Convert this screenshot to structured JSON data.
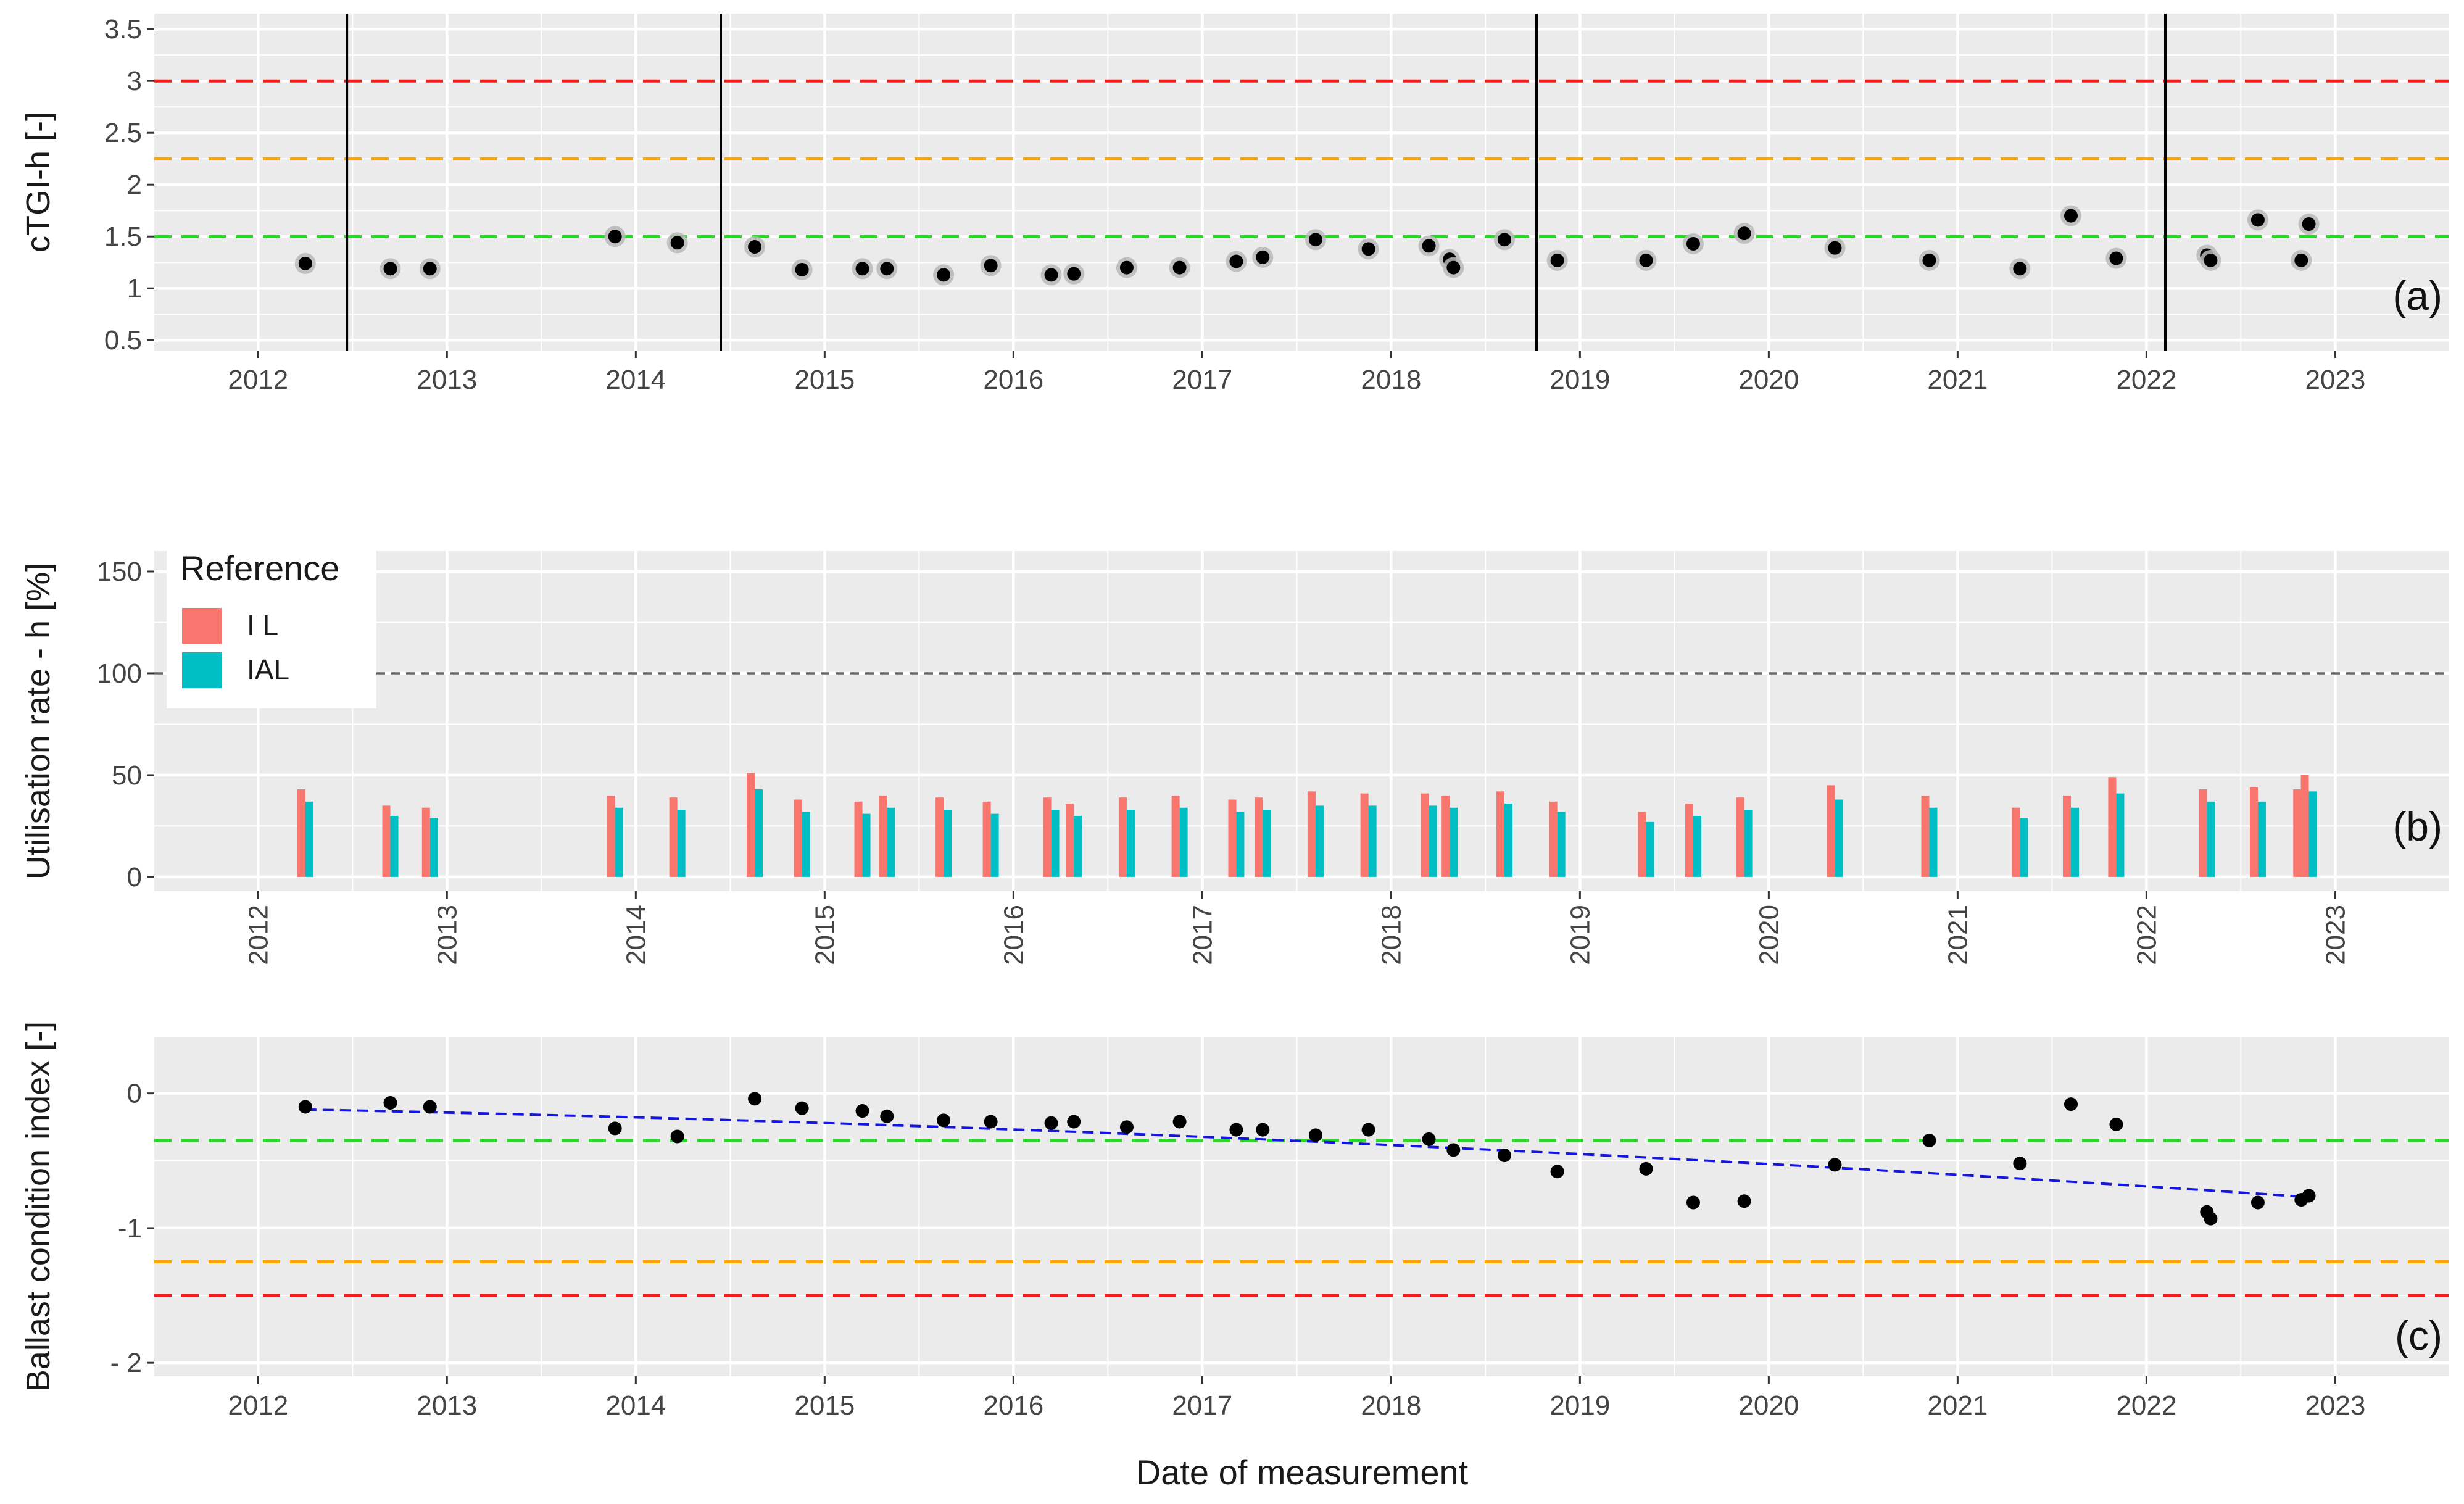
{
  "figure": {
    "xlabel": "Date of measurement"
  },
  "colors": {
    "panel_bg": "#EBEBEB",
    "grid": "#FFFFFF",
    "red": "#FF1A1A",
    "orange": "#FFA500",
    "green": "#22DD22",
    "il": "#F8766D",
    "ial": "#00BFC4",
    "trend": "#1515E0",
    "vline": "#000000",
    "ref100": "#666666"
  },
  "chart_data": [
    {
      "id": "a",
      "type": "scatter",
      "panel_label": "(a)",
      "ylabel": "cTGI-h [-]",
      "ylim": [
        0.4,
        3.65
      ],
      "xlim": [
        2011.45,
        2023.6
      ],
      "yticks": [
        0.5,
        1,
        1.5,
        2,
        2.5,
        3,
        3.5
      ],
      "ytick_labels": [
        "0.5",
        "1",
        "1.5",
        "2",
        "2.5",
        "3",
        "3.5"
      ],
      "xticks": [
        2012,
        2013,
        2014,
        2015,
        2016,
        2017,
        2018,
        2019,
        2020,
        2021,
        2022,
        2023
      ],
      "xtick_labels": [
        "2012",
        "2013",
        "2014",
        "2015",
        "2016",
        "2017",
        "2018",
        "2019",
        "2020",
        "2021",
        "2022",
        "2023"
      ],
      "threshold_lines": [
        {
          "name": "red",
          "y": 3.0
        },
        {
          "name": "orange",
          "y": 2.25
        },
        {
          "name": "green",
          "y": 1.5
        }
      ],
      "vertical_lines": [
        2012.47,
        2014.45,
        2018.77,
        2022.1
      ],
      "points": [
        {
          "x": 2012.25,
          "y": 1.24
        },
        {
          "x": 2012.7,
          "y": 1.19
        },
        {
          "x": 2012.91,
          "y": 1.19
        },
        {
          "x": 2013.89,
          "y": 1.5
        },
        {
          "x": 2014.22,
          "y": 1.44
        },
        {
          "x": 2014.63,
          "y": 1.4
        },
        {
          "x": 2014.88,
          "y": 1.18
        },
        {
          "x": 2015.2,
          "y": 1.19
        },
        {
          "x": 2015.33,
          "y": 1.19
        },
        {
          "x": 2015.63,
          "y": 1.13
        },
        {
          "x": 2015.88,
          "y": 1.22
        },
        {
          "x": 2016.2,
          "y": 1.13
        },
        {
          "x": 2016.32,
          "y": 1.14
        },
        {
          "x": 2016.6,
          "y": 1.2
        },
        {
          "x": 2016.88,
          "y": 1.2
        },
        {
          "x": 2017.18,
          "y": 1.26
        },
        {
          "x": 2017.32,
          "y": 1.3
        },
        {
          "x": 2017.6,
          "y": 1.47
        },
        {
          "x": 2017.88,
          "y": 1.38
        },
        {
          "x": 2018.2,
          "y": 1.41
        },
        {
          "x": 2018.31,
          "y": 1.28
        },
        {
          "x": 2018.33,
          "y": 1.2
        },
        {
          "x": 2018.6,
          "y": 1.47
        },
        {
          "x": 2018.88,
          "y": 1.27
        },
        {
          "x": 2019.35,
          "y": 1.27
        },
        {
          "x": 2019.6,
          "y": 1.43
        },
        {
          "x": 2019.87,
          "y": 1.53
        },
        {
          "x": 2020.35,
          "y": 1.39
        },
        {
          "x": 2020.85,
          "y": 1.27
        },
        {
          "x": 2021.33,
          "y": 1.19
        },
        {
          "x": 2021.6,
          "y": 1.7
        },
        {
          "x": 2021.84,
          "y": 1.29
        },
        {
          "x": 2022.32,
          "y": 1.32
        },
        {
          "x": 2022.34,
          "y": 1.27
        },
        {
          "x": 2022.59,
          "y": 1.66
        },
        {
          "x": 2022.82,
          "y": 1.27
        },
        {
          "x": 2022.86,
          "y": 1.62
        }
      ]
    },
    {
      "id": "b",
      "type": "bar",
      "panel_label": "(b)",
      "ylabel": "Utilisation rate - h [%]",
      "ylim": [
        -7,
        160
      ],
      "xlim": [
        2011.45,
        2023.6
      ],
      "yticks": [
        0,
        50,
        100,
        150
      ],
      "ytick_labels": [
        "0",
        "50",
        "100",
        "150"
      ],
      "xticks": [
        2012,
        2013,
        2014,
        2015,
        2016,
        2017,
        2018,
        2019,
        2020,
        2021,
        2022,
        2023
      ],
      "xtick_labels": [
        "2012",
        "2013",
        "2014",
        "2015",
        "2016",
        "2017",
        "2018",
        "2019",
        "2020",
        "2021",
        "2022",
        "2023"
      ],
      "reference_line": 100,
      "legend": {
        "title": "Reference",
        "position": "top-left",
        "entries": [
          {
            "key": "il",
            "label": "I L"
          },
          {
            "key": "ial",
            "label": "IAL"
          }
        ]
      },
      "x": [
        2012.25,
        2012.7,
        2012.91,
        2013.89,
        2014.22,
        2014.63,
        2014.88,
        2015.2,
        2015.33,
        2015.63,
        2015.88,
        2016.2,
        2016.32,
        2016.6,
        2016.88,
        2017.18,
        2017.32,
        2017.6,
        2017.88,
        2018.2,
        2018.31,
        2018.6,
        2018.88,
        2019.35,
        2019.6,
        2019.87,
        2020.35,
        2020.85,
        2021.33,
        2021.6,
        2021.84,
        2022.32,
        2022.59,
        2022.82,
        2022.86
      ],
      "series": [
        {
          "name": "I L",
          "key": "il",
          "values": [
            43,
            35,
            34,
            40,
            39,
            51,
            38,
            37,
            40,
            39,
            37,
            39,
            36,
            39,
            40,
            38,
            39,
            42,
            41,
            41,
            40,
            42,
            37,
            32,
            36,
            39,
            45,
            40,
            34,
            40,
            49,
            43,
            44,
            43,
            50
          ]
        },
        {
          "name": "IAL",
          "key": "ial",
          "values": [
            37,
            30,
            29,
            34,
            33,
            43,
            32,
            31,
            34,
            33,
            31,
            33,
            30,
            33,
            34,
            32,
            33,
            35,
            35,
            35,
            34,
            36,
            32,
            27,
            30,
            33,
            38,
            34,
            29,
            34,
            41,
            37,
            37,
            37,
            42
          ]
        }
      ]
    },
    {
      "id": "c",
      "type": "scatter",
      "panel_label": "(c)",
      "ylabel": "Ballast condition index [-]",
      "ylim": [
        -2.1,
        0.42
      ],
      "xlim": [
        2011.45,
        2023.6
      ],
      "yticks": [
        -2,
        -1,
        0
      ],
      "ytick_labels": [
        "- 2",
        "-1",
        "0"
      ],
      "xticks": [
        2012,
        2013,
        2014,
        2015,
        2016,
        2017,
        2018,
        2019,
        2020,
        2021,
        2022,
        2023
      ],
      "xtick_labels": [
        "2012",
        "2013",
        "2014",
        "2015",
        "2016",
        "2017",
        "2018",
        "2019",
        "2020",
        "2021",
        "2022",
        "2023"
      ],
      "threshold_lines": [
        {
          "name": "green",
          "y": -0.35
        },
        {
          "name": "orange",
          "y": -1.25
        },
        {
          "name": "red",
          "y": -1.5
        }
      ],
      "trend": {
        "x": [
          2012.25,
          2022.86
        ],
        "y0": -0.12,
        "y1": -0.77,
        "curvature": "concave-down"
      },
      "points": [
        {
          "x": 2012.25,
          "y": -0.1
        },
        {
          "x": 2012.7,
          "y": -0.07
        },
        {
          "x": 2012.91,
          "y": -0.1
        },
        {
          "x": 2013.89,
          "y": -0.26
        },
        {
          "x": 2014.22,
          "y": -0.32
        },
        {
          "x": 2014.63,
          "y": -0.04
        },
        {
          "x": 2014.88,
          "y": -0.11
        },
        {
          "x": 2015.2,
          "y": -0.13
        },
        {
          "x": 2015.33,
          "y": -0.17
        },
        {
          "x": 2015.63,
          "y": -0.2
        },
        {
          "x": 2015.88,
          "y": -0.21
        },
        {
          "x": 2016.2,
          "y": -0.22
        },
        {
          "x": 2016.32,
          "y": -0.21
        },
        {
          "x": 2016.6,
          "y": -0.25
        },
        {
          "x": 2016.88,
          "y": -0.21
        },
        {
          "x": 2017.18,
          "y": -0.27
        },
        {
          "x": 2017.32,
          "y": -0.27
        },
        {
          "x": 2017.6,
          "y": -0.31
        },
        {
          "x": 2017.88,
          "y": -0.27
        },
        {
          "x": 2018.2,
          "y": -0.34
        },
        {
          "x": 2018.33,
          "y": -0.42
        },
        {
          "x": 2018.6,
          "y": -0.46
        },
        {
          "x": 2018.88,
          "y": -0.58
        },
        {
          "x": 2019.35,
          "y": -0.56
        },
        {
          "x": 2019.6,
          "y": -0.81
        },
        {
          "x": 2019.87,
          "y": -0.8
        },
        {
          "x": 2020.35,
          "y": -0.53
        },
        {
          "x": 2020.85,
          "y": -0.35
        },
        {
          "x": 2021.33,
          "y": -0.52
        },
        {
          "x": 2021.6,
          "y": -0.08
        },
        {
          "x": 2021.84,
          "y": -0.23
        },
        {
          "x": 2022.32,
          "y": -0.88
        },
        {
          "x": 2022.34,
          "y": -0.93
        },
        {
          "x": 2022.59,
          "y": -0.81
        },
        {
          "x": 2022.82,
          "y": -0.79
        },
        {
          "x": 2022.86,
          "y": -0.76
        }
      ]
    }
  ]
}
